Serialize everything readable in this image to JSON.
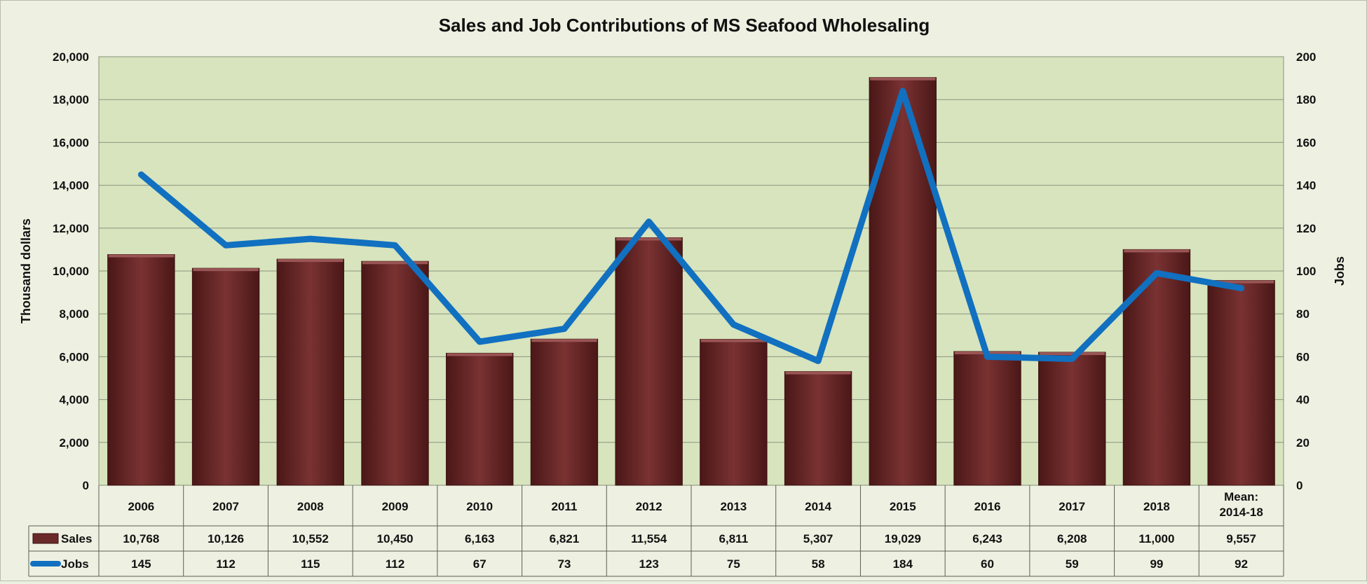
{
  "chart_data": {
    "type": "bar",
    "title": "Sales and Job Contributions of MS Seafood Wholesaling",
    "categories": [
      [
        "2006"
      ],
      [
        "2007"
      ],
      [
        "2008"
      ],
      [
        "2009"
      ],
      [
        "2010"
      ],
      [
        "2011"
      ],
      [
        "2012"
      ],
      [
        "2013"
      ],
      [
        "2014"
      ],
      [
        "2015"
      ],
      [
        "2016"
      ],
      [
        "2017"
      ],
      [
        "2018"
      ],
      [
        "Mean:",
        "2014-18"
      ]
    ],
    "series": [
      {
        "name": "Sales",
        "chart_type": "bar",
        "axis": "left",
        "color": "#6b2a2a",
        "values": [
          10768,
          10126,
          10552,
          10450,
          6163,
          6821,
          11554,
          6811,
          5307,
          19029,
          6243,
          6208,
          11000,
          9557
        ],
        "labels": [
          "10,768",
          "10,126",
          "10,552",
          "10,450",
          "6,163",
          "6,821",
          "11,554",
          "6,811",
          "5,307",
          "19,029",
          "6,243",
          "6,208",
          "11,000",
          "9,557"
        ]
      },
      {
        "name": "Jobs",
        "chart_type": "line",
        "axis": "right",
        "color": "#1170c0",
        "values": [
          145,
          112,
          115,
          112,
          67,
          73,
          123,
          75,
          58,
          184,
          60,
          59,
          99,
          92
        ],
        "labels": [
          "145",
          "112",
          "115",
          "112",
          "67",
          "73",
          "123",
          "75",
          "58",
          "184",
          "60",
          "59",
          "99",
          "92"
        ]
      }
    ],
    "ylabel": "Thousand dollars",
    "ylabel_right": "Jobs",
    "ylim": [
      0,
      20000
    ],
    "ylim_right": [
      0,
      200
    ],
    "yticks": [
      "0",
      "2,000",
      "4,000",
      "6,000",
      "8,000",
      "10,000",
      "12,000",
      "14,000",
      "16,000",
      "18,000",
      "20,000"
    ],
    "yticks_right": [
      "0",
      "20",
      "40",
      "60",
      "80",
      "100",
      "120",
      "140",
      "160",
      "180",
      "200"
    ],
    "grid": true,
    "legend": "data table",
    "plot_background": "#d7e4bd"
  }
}
